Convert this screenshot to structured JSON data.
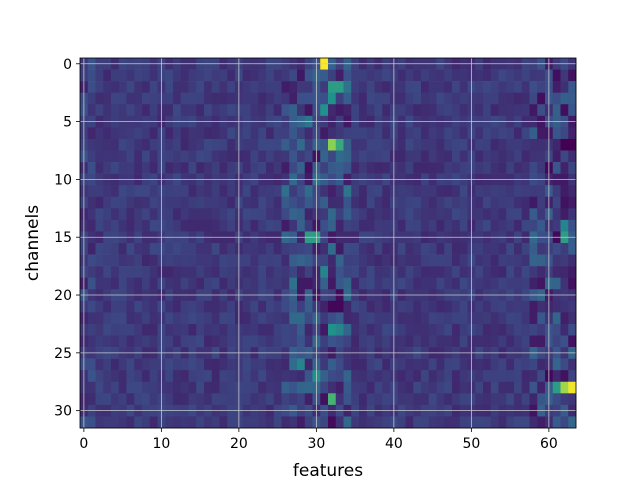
{
  "chart_data": {
    "type": "heatmap",
    "title": "",
    "xlabel": "features",
    "ylabel": "channels",
    "colormap": "viridis",
    "n_rows": 32,
    "n_cols": 64,
    "xlim": [
      -0.5,
      63.5
    ],
    "ylim": [
      31.5,
      -0.5
    ],
    "y_inverted": true,
    "grid": true,
    "x_ticks": [
      0,
      10,
      20,
      30,
      40,
      50,
      60
    ],
    "y_ticks": [
      0,
      5,
      10,
      15,
      20,
      25,
      30
    ],
    "x_tick_labels": [
      "0",
      "10",
      "20",
      "30",
      "40",
      "50",
      "60"
    ],
    "y_tick_labels": [
      "0",
      "5",
      "10",
      "15",
      "20",
      "25",
      "30"
    ],
    "value_range": [
      0,
      1
    ],
    "base_value": 0.17,
    "hot_spots": [
      {
        "row": 0,
        "col": 31,
        "value": 1.0
      },
      {
        "row": 2,
        "col": 32,
        "value": 0.55
      },
      {
        "row": 2,
        "col": 33,
        "value": 0.55
      },
      {
        "row": 3,
        "col": 32,
        "value": 0.5
      },
      {
        "row": 4,
        "col": 31,
        "value": 0.5
      },
      {
        "row": 7,
        "col": 32,
        "value": 0.82
      },
      {
        "row": 7,
        "col": 33,
        "value": 0.6
      },
      {
        "row": 15,
        "col": 29,
        "value": 0.55
      },
      {
        "row": 15,
        "col": 30,
        "value": 0.55
      },
      {
        "row": 15,
        "col": 62,
        "value": 0.55
      },
      {
        "row": 14,
        "col": 62,
        "value": 0.45
      },
      {
        "row": 23,
        "col": 32,
        "value": 0.5
      },
      {
        "row": 23,
        "col": 33,
        "value": 0.45
      },
      {
        "row": 28,
        "col": 61,
        "value": 0.55
      },
      {
        "row": 28,
        "col": 62,
        "value": 0.85
      },
      {
        "row": 28,
        "col": 63,
        "value": 0.98
      },
      {
        "row": 29,
        "col": 32,
        "value": 0.65
      },
      {
        "row": 27,
        "col": 30,
        "value": 0.5
      },
      {
        "row": 26,
        "col": 28,
        "value": 0.45
      },
      {
        "row": 18,
        "col": 31,
        "value": 0.45
      }
    ],
    "low_spots": [
      {
        "row": 7,
        "col": 62,
        "value": 0.0
      },
      {
        "row": 7,
        "col": 63,
        "value": 0.0
      },
      {
        "row": 21,
        "col": 32,
        "value": 0.02
      },
      {
        "row": 21,
        "col": 33,
        "value": 0.02
      },
      {
        "row": 29,
        "col": 31,
        "value": 0.05
      },
      {
        "row": 31,
        "col": 32,
        "value": 0.03
      }
    ]
  }
}
